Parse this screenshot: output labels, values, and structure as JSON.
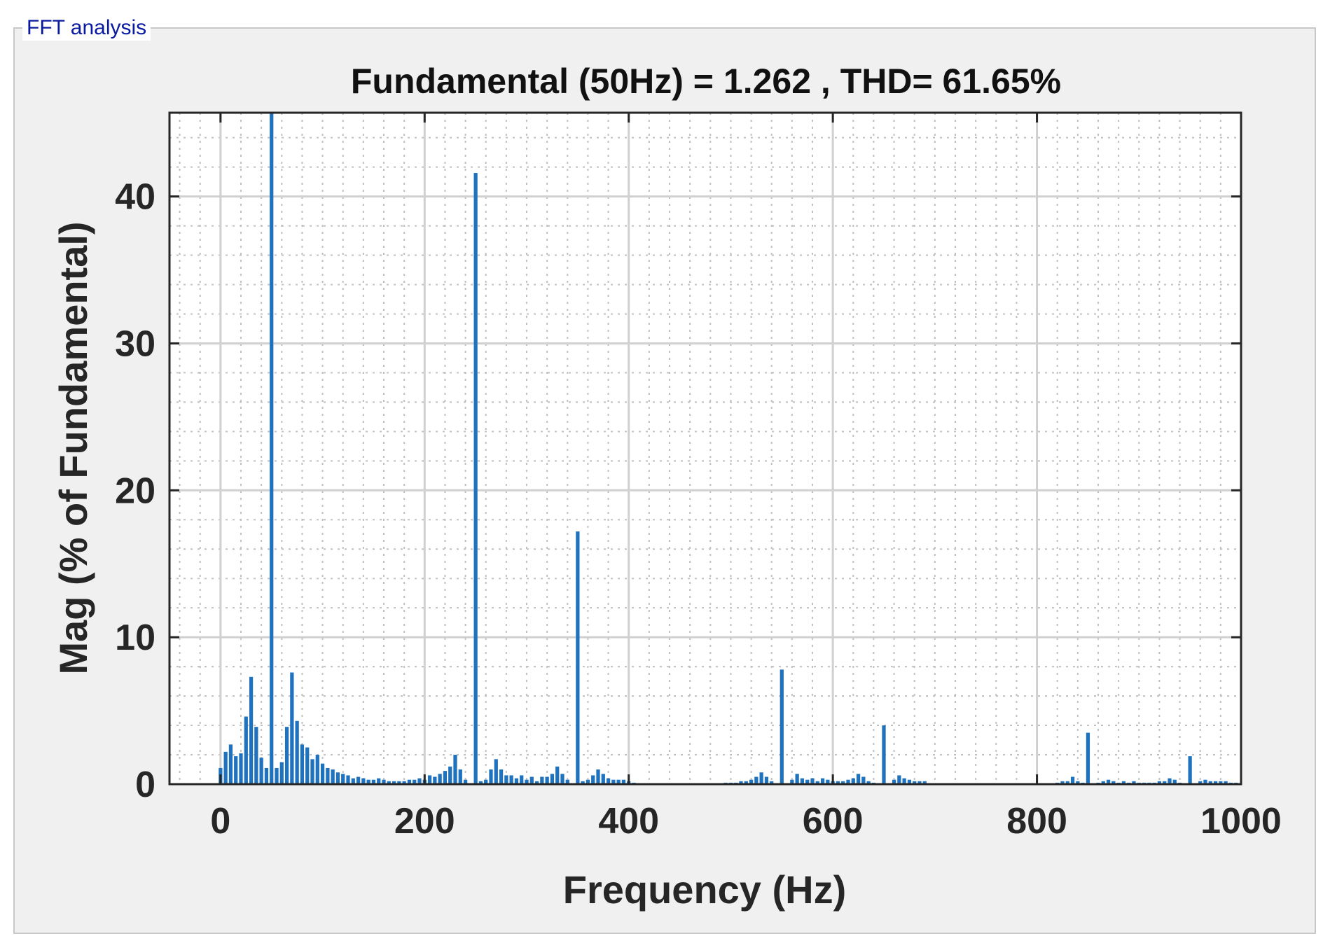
{
  "panel": {
    "title": "FFT analysis"
  },
  "colors": {
    "bar": "#1f72be",
    "axis": "#262626",
    "grid": "#d0d0d0",
    "minor_grid": "#c0c0c0",
    "panel_bg": "#f0f0f0",
    "plot_bg": "#ffffff",
    "title_color": "#0a1aa0"
  },
  "chart_data": {
    "type": "bar",
    "title": "Fundamental (50Hz) = 1.262 , THD= 61.65%",
    "xlabel": "Frequency (Hz)",
    "ylabel": "Mag (% of Fundamental)",
    "xlim": [
      -50,
      1000
    ],
    "ylim": [
      0,
      45.7
    ],
    "xticks": [
      0,
      200,
      400,
      600,
      800,
      1000
    ],
    "xtick_labels": [
      "0",
      "200",
      "400",
      "600",
      "800",
      "1000"
    ],
    "yticks": [
      0,
      10,
      20,
      30,
      40
    ],
    "ytick_labels": [
      "0",
      "10",
      "20",
      "30",
      "40"
    ],
    "grid": true,
    "minor_grid": true,
    "series": [
      {
        "bars": [
          [
            0,
            1.1
          ],
          [
            5,
            2.2
          ],
          [
            10,
            2.7
          ],
          [
            15,
            1.9
          ],
          [
            20,
            2.1
          ],
          [
            25,
            4.6
          ],
          [
            30,
            7.3
          ],
          [
            35,
            3.9
          ],
          [
            40,
            1.8
          ],
          [
            45,
            1.1
          ],
          [
            50,
            100
          ],
          [
            55,
            1.1
          ],
          [
            60,
            1.5
          ],
          [
            65,
            3.9
          ],
          [
            70,
            7.6
          ],
          [
            75,
            4.3
          ],
          [
            80,
            2.7
          ],
          [
            85,
            2.5
          ],
          [
            90,
            1.7
          ],
          [
            95,
            2.0
          ],
          [
            100,
            1.4
          ],
          [
            105,
            1.1
          ],
          [
            110,
            1.0
          ],
          [
            115,
            0.8
          ],
          [
            120,
            0.7
          ],
          [
            125,
            0.6
          ],
          [
            130,
            0.4
          ],
          [
            135,
            0.5
          ],
          [
            140,
            0.4
          ],
          [
            145,
            0.3
          ],
          [
            150,
            0.3
          ],
          [
            155,
            0.4
          ],
          [
            160,
            0.3
          ],
          [
            165,
            0.2
          ],
          [
            170,
            0.2
          ],
          [
            175,
            0.2
          ],
          [
            180,
            0.2
          ],
          [
            185,
            0.3
          ],
          [
            190,
            0.3
          ],
          [
            195,
            0.4
          ],
          [
            200,
            0.3
          ],
          [
            205,
            0.6
          ],
          [
            210,
            0.5
          ],
          [
            215,
            0.7
          ],
          [
            220,
            0.9
          ],
          [
            225,
            1.2
          ],
          [
            230,
            2.0
          ],
          [
            235,
            1.0
          ],
          [
            240,
            0.3
          ],
          [
            250,
            41.6
          ],
          [
            255,
            0.2
          ],
          [
            260,
            0.3
          ],
          [
            265,
            1.0
          ],
          [
            270,
            1.7
          ],
          [
            275,
            1.0
          ],
          [
            280,
            0.6
          ],
          [
            285,
            0.6
          ],
          [
            290,
            0.4
          ],
          [
            295,
            0.6
          ],
          [
            300,
            0.3
          ],
          [
            305,
            0.5
          ],
          [
            310,
            0.2
          ],
          [
            315,
            0.5
          ],
          [
            320,
            0.5
          ],
          [
            325,
            0.7
          ],
          [
            330,
            1.2
          ],
          [
            335,
            0.7
          ],
          [
            340,
            0.3
          ],
          [
            350,
            17.2
          ],
          [
            355,
            0.2
          ],
          [
            360,
            0.3
          ],
          [
            365,
            0.6
          ],
          [
            370,
            1.0
          ],
          [
            375,
            0.7
          ],
          [
            380,
            0.4
          ],
          [
            385,
            0.3
          ],
          [
            390,
            0.3
          ],
          [
            395,
            0.3
          ],
          [
            400,
            0.2
          ],
          [
            405,
            0.1
          ],
          [
            495,
            0.1
          ],
          [
            500,
            0.1
          ],
          [
            505,
            0.1
          ],
          [
            510,
            0.2
          ],
          [
            515,
            0.2
          ],
          [
            520,
            0.3
          ],
          [
            525,
            0.5
          ],
          [
            530,
            0.8
          ],
          [
            535,
            0.5
          ],
          [
            540,
            0.2
          ],
          [
            550,
            7.8
          ],
          [
            560,
            0.3
          ],
          [
            565,
            0.7
          ],
          [
            570,
            0.4
          ],
          [
            575,
            0.3
          ],
          [
            580,
            0.4
          ],
          [
            585,
            0.2
          ],
          [
            590,
            0.4
          ],
          [
            595,
            0.3
          ],
          [
            600,
            0.2
          ],
          [
            605,
            0.2
          ],
          [
            610,
            0.2
          ],
          [
            615,
            0.3
          ],
          [
            620,
            0.4
          ],
          [
            625,
            0.7
          ],
          [
            630,
            0.5
          ],
          [
            635,
            0.2
          ],
          [
            640,
            0.1
          ],
          [
            650,
            4.0
          ],
          [
            660,
            0.3
          ],
          [
            665,
            0.6
          ],
          [
            670,
            0.4
          ],
          [
            675,
            0.3
          ],
          [
            680,
            0.2
          ],
          [
            685,
            0.2
          ],
          [
            690,
            0.2
          ],
          [
            820,
            0.1
          ],
          [
            825,
            0.2
          ],
          [
            830,
            0.2
          ],
          [
            835,
            0.5
          ],
          [
            840,
            0.2
          ],
          [
            845,
            0.1
          ],
          [
            850,
            3.5
          ],
          [
            860,
            0.1
          ],
          [
            865,
            0.2
          ],
          [
            870,
            0.3
          ],
          [
            875,
            0.2
          ],
          [
            880,
            0.1
          ],
          [
            885,
            0.2
          ],
          [
            890,
            0.1
          ],
          [
            895,
            0.2
          ],
          [
            900,
            0.1
          ],
          [
            905,
            0.1
          ],
          [
            910,
            0.1
          ],
          [
            915,
            0.1
          ],
          [
            920,
            0.2
          ],
          [
            925,
            0.2
          ],
          [
            930,
            0.4
          ],
          [
            935,
            0.3
          ],
          [
            940,
            0.1
          ],
          [
            950,
            1.9
          ],
          [
            960,
            0.2
          ],
          [
            965,
            0.3
          ],
          [
            970,
            0.2
          ],
          [
            975,
            0.2
          ],
          [
            980,
            0.2
          ],
          [
            985,
            0.2
          ],
          [
            990,
            0.1
          ],
          [
            995,
            0.1
          ]
        ]
      }
    ]
  }
}
